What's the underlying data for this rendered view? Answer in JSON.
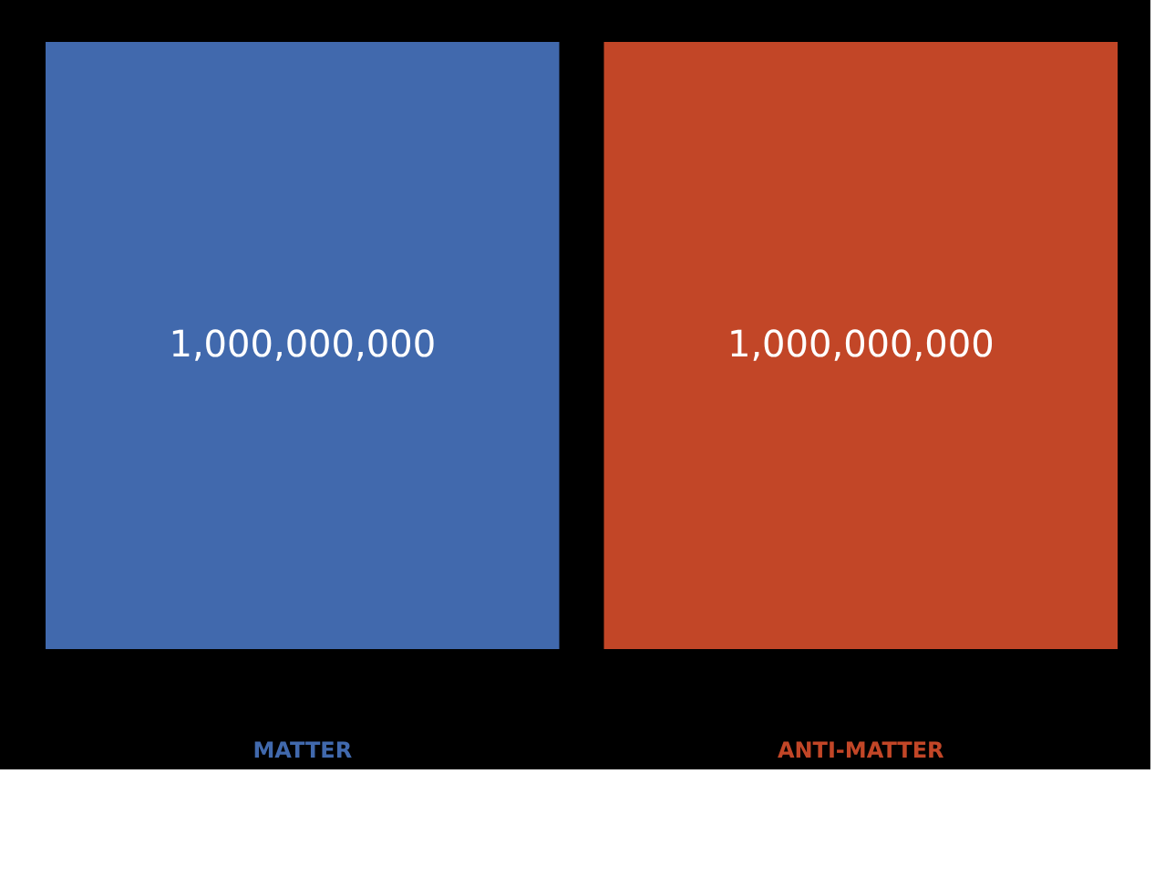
{
  "chart_data": {
    "type": "bar",
    "categories": [
      "MATTER",
      "ANTI-MATTER"
    ],
    "values": [
      1000000000,
      1000000000
    ],
    "value_labels": [
      "1,000,000,000",
      "1,000,000,000"
    ],
    "colors": [
      "#4169ad",
      "#c24627"
    ],
    "ylim": [
      0,
      1000000000
    ],
    "tick_labels": "x",
    "grid": false
  }
}
